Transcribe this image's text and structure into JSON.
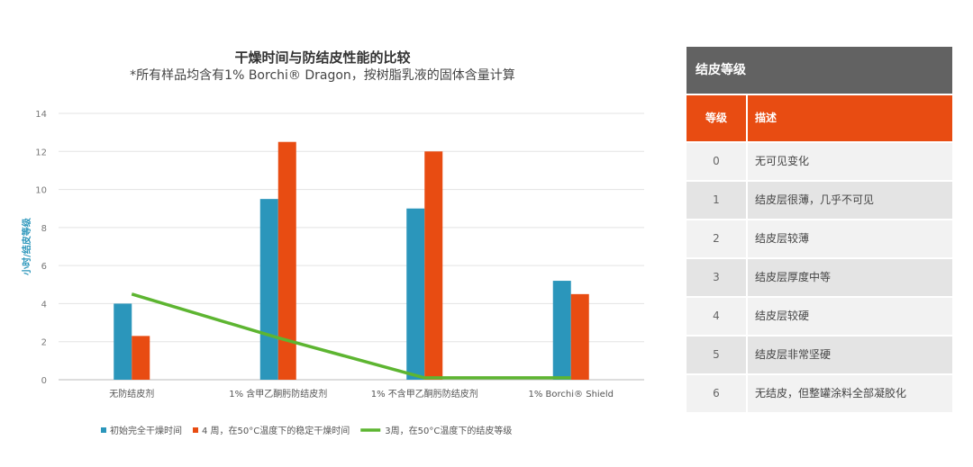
{
  "chart_data": {
    "type": "bar",
    "title": "干燥时间与防结皮性能的比较",
    "subtitle": "*所有样品均含有1% Borchi® Dragon，按树脂乳液的固体含量计算",
    "ylabel": "小时/结皮等级",
    "ylim": [
      0,
      14
    ],
    "yticks": [
      0,
      2,
      4,
      6,
      8,
      10,
      12,
      14
    ],
    "grid": true,
    "legend_position": "bottom",
    "categories": [
      "无防结皮剂",
      "1% 含甲乙酮肟防结皮剂",
      "1% 不含甲乙酮肟防结皮剂",
      "1% Borchi® Shield"
    ],
    "series": [
      {
        "name": "初始完全干燥时间",
        "kind": "bar",
        "color": "#2b96bb",
        "values": [
          4.0,
          9.5,
          9.0,
          5.2
        ]
      },
      {
        "name": "4 周，在50°C温度下的稳定干燥时间",
        "kind": "bar",
        "color": "#e84c12",
        "values": [
          2.3,
          12.5,
          12.0,
          4.5
        ]
      },
      {
        "name": "3周，在50°C温度下的结皮等级",
        "kind": "line",
        "color": "#5db531",
        "values": [
          4.5,
          2.2,
          0.1,
          0.1
        ]
      }
    ]
  },
  "table": {
    "title": "结皮等级",
    "headers": {
      "grade": "等级",
      "description": "描述"
    },
    "rows": [
      {
        "grade": "0",
        "description": "无可见变化"
      },
      {
        "grade": "1",
        "description": "结皮层很薄，几乎不可见"
      },
      {
        "grade": "2",
        "description": "结皮层较薄"
      },
      {
        "grade": "3",
        "description": "结皮层厚度中等"
      },
      {
        "grade": "4",
        "description": "结皮层较硬"
      },
      {
        "grade": "5",
        "description": "结皮层非常坚硬"
      },
      {
        "grade": "6",
        "description": "无结皮，但整罐涂料全部凝胶化"
      }
    ]
  }
}
